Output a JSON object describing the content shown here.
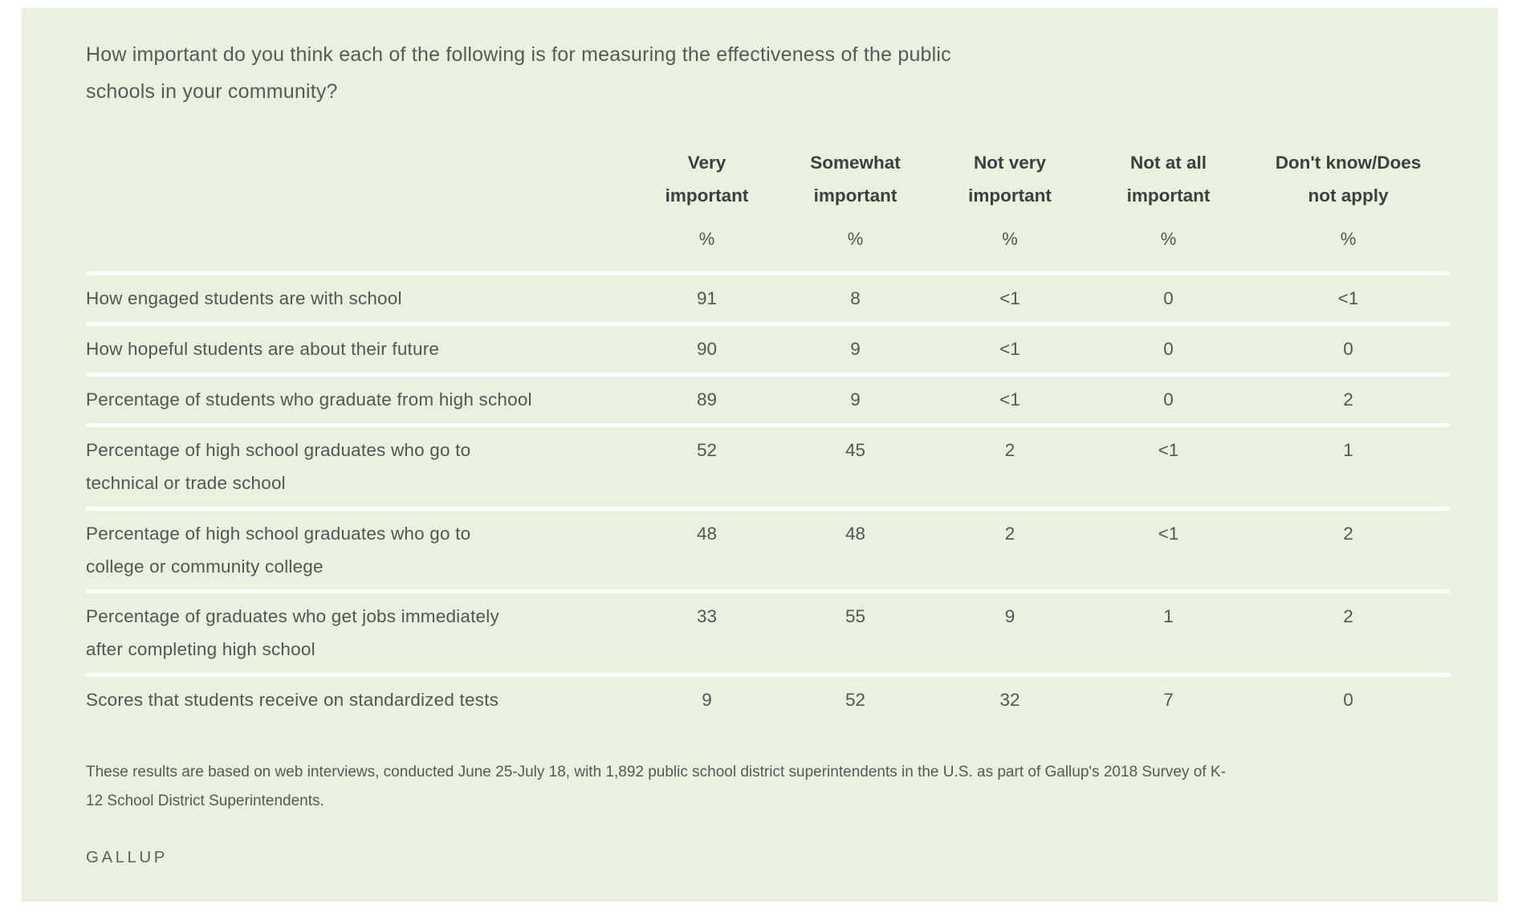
{
  "colors": {
    "card_background": "#eaf1de",
    "page_background": "#ffffff",
    "separator": "#ffffff",
    "title_text": "#565a5b",
    "header_text": "#3c4041",
    "body_text": "#525657"
  },
  "title": "How important do you think each of the following is for measuring the effectiveness of the public\nschools in your community?",
  "chart_data": {
    "type": "table",
    "title": "How important do you think each of the following is for measuring the effectiveness of the public schools in your community?",
    "unit_symbol": "%",
    "columns": [
      "Very important",
      "Somewhat important",
      "Not very important",
      "Not at all important",
      "Don't know/Does not apply"
    ],
    "columns_display": [
      "Very\nimportant",
      "Somewhat\nimportant",
      "Not very\nimportant",
      "Not at all\nimportant",
      "Don't know/Does\nnot apply"
    ],
    "rows": [
      {
        "label": "How engaged students are with school",
        "label_display": "How engaged students are with school",
        "values": [
          "91",
          "8",
          "<1",
          "0",
          "<1"
        ]
      },
      {
        "label": "How hopeful students are about their future",
        "label_display": "How hopeful students are about their future",
        "values": [
          "90",
          "9",
          "<1",
          "0",
          "0"
        ]
      },
      {
        "label": "Percentage of students who graduate from high school",
        "label_display": "Percentage of students who graduate from high school",
        "values": [
          "89",
          "9",
          "<1",
          "0",
          "2"
        ]
      },
      {
        "label": "Percentage of high school graduates who go to technical or trade school",
        "label_display": "Percentage of high school graduates who go to\ntechnical or trade school",
        "values": [
          "52",
          "45",
          "2",
          "<1",
          "1"
        ]
      },
      {
        "label": "Percentage of high school graduates who go to college or community college",
        "label_display": "Percentage of high school graduates who go to\ncollege or community college",
        "values": [
          "48",
          "48",
          "2",
          "<1",
          "2"
        ]
      },
      {
        "label": "Percentage of graduates who get jobs immediately after completing high school",
        "label_display": "Percentage of graduates who get jobs immediately\nafter completing high school",
        "values": [
          "33",
          "55",
          "9",
          "1",
          "2"
        ]
      },
      {
        "label": "Scores that students receive on standardized tests",
        "label_display": "Scores that students receive on standardized tests",
        "values": [
          "9",
          "52",
          "32",
          "7",
          "0"
        ]
      }
    ]
  },
  "footnote": "These results are based on web interviews, conducted June 25-July 18, with 1,892 public school district superintendents in the U.S. as part of Gallup's 2018 Survey of K-\n12 School District Superintendents.",
  "brand": "GALLUP"
}
